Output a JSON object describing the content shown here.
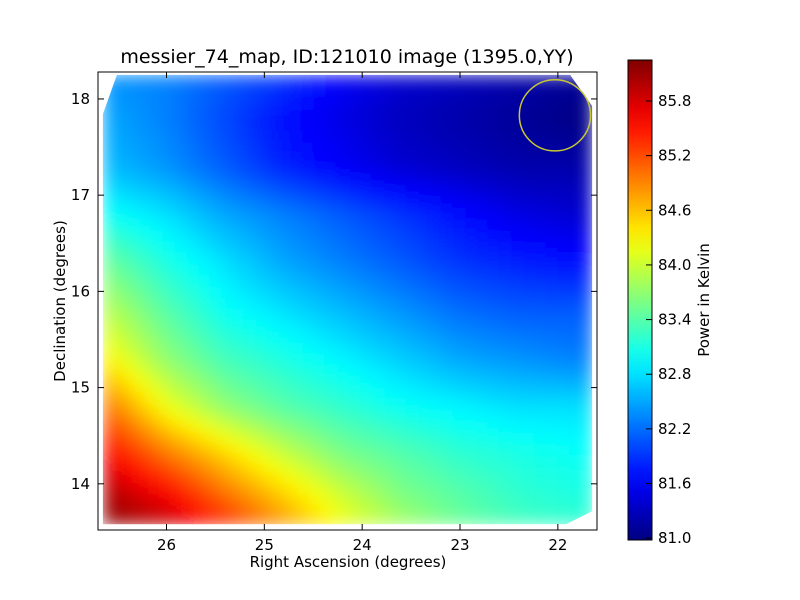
{
  "chart_data": {
    "type": "heatmap",
    "title": "messier_74_map, ID:121010 image (1395.0,YY)",
    "xlabel": "Right Ascension (degrees)",
    "ylabel": "Declination (degrees)",
    "xlim": [
      26.7,
      21.6
    ],
    "ylim": [
      13.52,
      18.28
    ],
    "x_ticks": [
      26,
      25,
      24,
      23,
      22
    ],
    "y_ticks": [
      14,
      15,
      16,
      17,
      18
    ],
    "grid": false,
    "colormap": "jet",
    "colorbar": {
      "label": "Power in Kelvin",
      "range": [
        80.98,
        86.25
      ],
      "ticks": [
        "81.0",
        "81.6",
        "82.2",
        "82.8",
        "83.4",
        "84.0",
        "84.6",
        "85.2",
        "85.8"
      ]
    },
    "map_extent": {
      "ra": [
        26.65,
        21.65
      ],
      "dec": [
        13.58,
        18.25
      ]
    },
    "samples": {
      "ra": [
        26.6,
        26.0,
        25.4,
        24.8,
        24.2,
        23.6,
        23.0,
        22.4,
        21.8
      ],
      "dec": [
        18.2,
        17.8,
        17.3,
        16.8,
        16.3,
        15.8,
        15.3,
        14.8,
        14.3,
        13.9,
        13.6
      ],
      "power": [
        [
          82.4,
          82.3,
          82.1,
          81.9,
          81.6,
          81.4,
          81.3,
          81.2,
          81.1
        ],
        [
          82.5,
          82.3,
          82.0,
          81.7,
          81.5,
          81.3,
          81.2,
          81.1,
          81.0
        ],
        [
          82.6,
          82.4,
          82.1,
          81.8,
          81.6,
          81.4,
          81.3,
          81.2,
          81.2
        ],
        [
          83.0,
          82.8,
          82.5,
          82.3,
          82.1,
          81.9,
          81.7,
          81.5,
          81.4
        ],
        [
          83.5,
          83.1,
          82.8,
          82.5,
          82.3,
          82.1,
          81.9,
          81.8,
          81.7
        ],
        [
          83.9,
          83.4,
          83.0,
          82.8,
          82.6,
          82.4,
          82.2,
          82.1,
          82.1
        ],
        [
          84.3,
          83.7,
          83.3,
          83.1,
          82.9,
          82.7,
          82.5,
          82.4,
          82.3
        ],
        [
          85.0,
          84.2,
          83.7,
          83.4,
          83.2,
          83.0,
          82.9,
          82.8,
          82.8
        ],
        [
          85.6,
          85.0,
          84.5,
          84.0,
          83.6,
          83.4,
          83.2,
          83.1,
          83.0
        ],
        [
          86.0,
          85.6,
          85.0,
          84.5,
          84.0,
          83.6,
          83.4,
          83.2,
          83.1
        ],
        [
          86.2,
          85.9,
          85.4,
          84.8,
          84.2,
          83.8,
          83.5,
          83.3,
          83.2
        ]
      ]
    },
    "annotation": {
      "shape": "circle",
      "ra": 22.03,
      "dec": 17.83,
      "radius_deg": 0.37,
      "color": "#c8c832"
    }
  }
}
